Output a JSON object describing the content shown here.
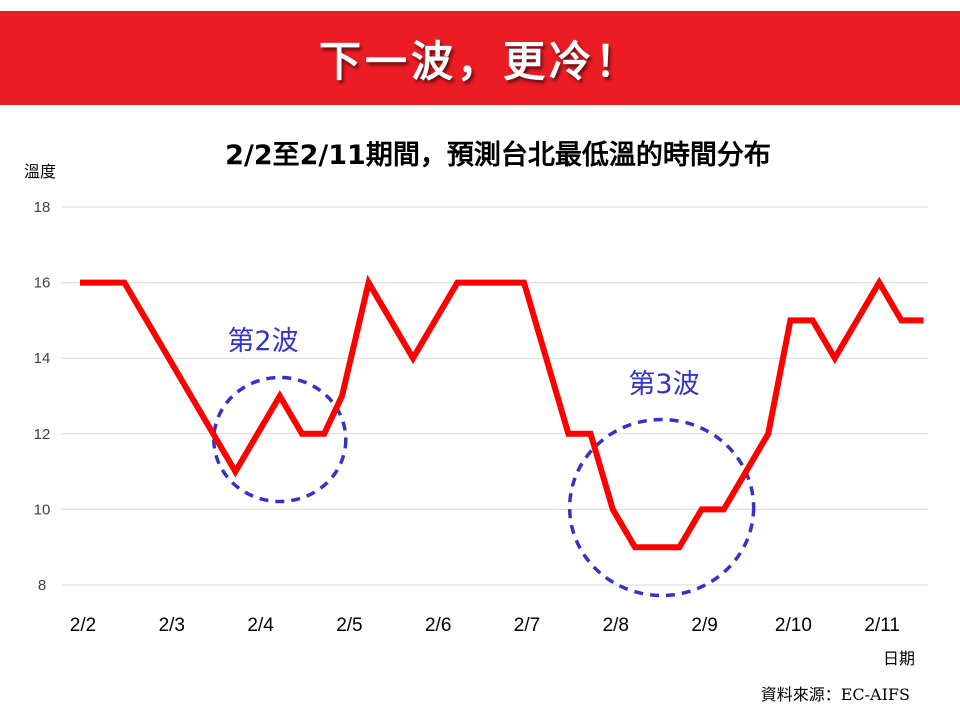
{
  "banner": {
    "title": "下一波，更冷！",
    "color": "#ec1c24"
  },
  "chart_data": {
    "type": "line",
    "title": "2/2至2/11期間，預測台北最低溫的時間分布",
    "ylabel": "溫度",
    "xlabel": "日期",
    "ylim": [
      8,
      18
    ],
    "yticks": [
      8,
      10,
      12,
      14,
      16,
      18
    ],
    "xlim": [
      0,
      9.35
    ],
    "xtick_positions": [
      0,
      1,
      2,
      3,
      4,
      5,
      6,
      7,
      8,
      9
    ],
    "xtick_labels": [
      "2/2",
      "2/3",
      "2/4",
      "2/5",
      "2/6",
      "2/7",
      "2/8",
      "2/9",
      "2/10",
      "2/11"
    ],
    "grid": true,
    "series": [
      {
        "color": "#ff0000",
        "x": [
          0,
          0.5,
          1.25,
          1.75,
          2.25,
          2.5,
          2.75,
          2.95,
          3.25,
          3.75,
          4.25,
          5,
          5.5,
          5.75,
          6,
          6.25,
          6.75,
          7,
          7.25,
          7.75,
          8,
          8.25,
          8.5,
          9,
          9.25,
          9.5
        ],
        "y": [
          16,
          16,
          13,
          11,
          13,
          12,
          12,
          13,
          16,
          14,
          16,
          16,
          12,
          12,
          10,
          9,
          9,
          10,
          10,
          12,
          15,
          15,
          14,
          16,
          15,
          15
        ]
      }
    ],
    "annotations": [
      {
        "text": "第2波",
        "cx": 2.25,
        "cy": 11.85,
        "color": "#3333cc"
      },
      {
        "text": "第3波",
        "cx": 6.55,
        "cy": 10.05,
        "color": "#3333cc"
      }
    ],
    "source": "資料來源：EC-AIFS"
  }
}
